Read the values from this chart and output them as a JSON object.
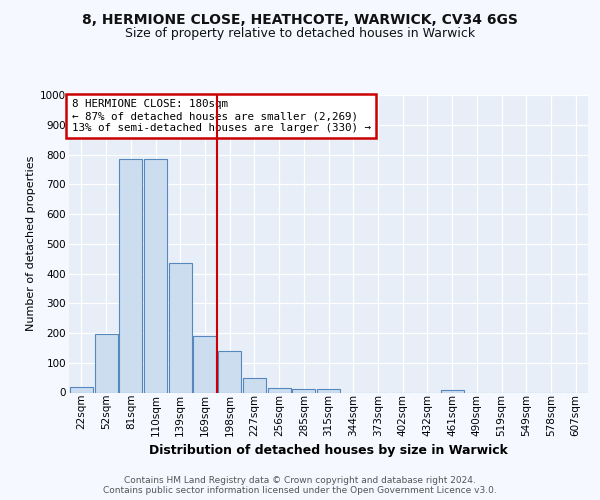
{
  "title": "8, HERMIONE CLOSE, HEATHCOTE, WARWICK, CV34 6GS",
  "subtitle": "Size of property relative to detached houses in Warwick",
  "xlabel": "Distribution of detached houses by size in Warwick",
  "ylabel": "Number of detached properties",
  "categories": [
    "22sqm",
    "52sqm",
    "81sqm",
    "110sqm",
    "139sqm",
    "169sqm",
    "198sqm",
    "227sqm",
    "256sqm",
    "285sqm",
    "315sqm",
    "344sqm",
    "373sqm",
    "402sqm",
    "432sqm",
    "461sqm",
    "490sqm",
    "519sqm",
    "549sqm",
    "578sqm",
    "607sqm"
  ],
  "values": [
    18,
    195,
    785,
    785,
    435,
    190,
    140,
    48,
    15,
    12,
    12,
    0,
    0,
    0,
    0,
    8,
    0,
    0,
    0,
    0,
    0
  ],
  "bar_color": "#ccddf0",
  "bar_edge_color": "#5588bb",
  "ylim": [
    0,
    1000
  ],
  "yticks": [
    0,
    100,
    200,
    300,
    400,
    500,
    600,
    700,
    800,
    900,
    1000
  ],
  "vline_x_index": 5.5,
  "vline_color": "#cc0000",
  "annotation_line1": "8 HERMIONE CLOSE: 180sqm",
  "annotation_line2": "← 87% of detached houses are smaller (2,269)",
  "annotation_line3": "13% of semi-detached houses are larger (330) →",
  "annotation_box_color": "#ffffff",
  "annotation_box_edge": "#cc0000",
  "footer": "Contains HM Land Registry data © Crown copyright and database right 2024.\nContains public sector information licensed under the Open Government Licence v3.0.",
  "bg_color": "#f5f8ff",
  "plot_bg_color": "#e8eef8",
  "title_fontsize": 10,
  "subtitle_fontsize": 9,
  "ylabel_fontsize": 8,
  "xlabel_fontsize": 9,
  "tick_fontsize": 7.5,
  "footer_fontsize": 6.5
}
